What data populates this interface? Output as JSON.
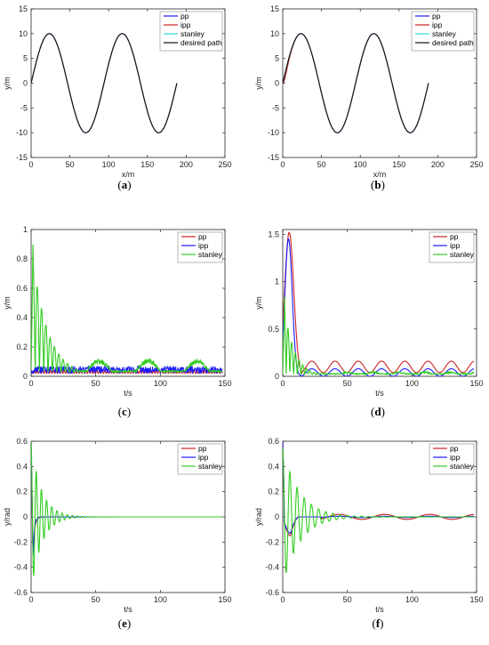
{
  "colors": {
    "pp": "#cc2222",
    "ipp": "#1a1aff",
    "stanley": "#33cc22",
    "stanley_path": "#33d6e0",
    "desired": "#111111",
    "axis": "#262626"
  },
  "panels": [
    {
      "label": "(a)",
      "chart_data": {
        "type": "line",
        "xlabel": "x/m",
        "ylabel": "y/m",
        "xlim": [
          0,
          250
        ],
        "ylim": [
          -15,
          15
        ],
        "xticks": [
          0,
          50,
          100,
          150,
          200,
          250
        ],
        "yticks": [
          -15,
          -10,
          -5,
          0,
          5,
          10,
          15
        ],
        "legend": [
          "pp",
          "ipp",
          "stanley",
          "desired path"
        ],
        "legend_position": "top-right",
        "series": [
          {
            "name": "pp",
            "color": "#1a1aff",
            "kind": "sine",
            "amp": 10,
            "period": 94,
            "x": [
              0,
              188
            ]
          },
          {
            "name": "ipp",
            "color": "#cc2222",
            "kind": "sine",
            "amp": 10,
            "period": 94,
            "x": [
              0,
              188
            ]
          },
          {
            "name": "stanley",
            "color": "#33d6e0",
            "kind": "sine",
            "amp": 10,
            "period": 94,
            "x": [
              0,
              188
            ]
          },
          {
            "name": "desired path",
            "color": "#111111",
            "kind": "sine",
            "amp": 10,
            "period": 94,
            "x": [
              0,
              188
            ]
          }
        ]
      }
    },
    {
      "label": "(b)",
      "chart_data": {
        "type": "line",
        "xlabel": "x/m",
        "ylabel": "y/m",
        "xlim": [
          0,
          250
        ],
        "ylim": [
          -15,
          15
        ],
        "xticks": [
          0,
          50,
          100,
          150,
          200,
          250
        ],
        "yticks": [
          -15,
          -10,
          -5,
          0,
          5,
          10,
          15
        ],
        "legend": [
          "pp",
          "ipp",
          "stanley",
          "desired path"
        ],
        "legend_position": "top-right",
        "series": [
          {
            "name": "pp",
            "color": "#1a1aff",
            "kind": "sine",
            "amp": 10,
            "period": 94,
            "x": [
              0,
              188
            ],
            "lag": 1.5
          },
          {
            "name": "ipp",
            "color": "#cc2222",
            "kind": "sine",
            "amp": 10,
            "period": 94,
            "x": [
              0,
              188
            ],
            "lag": 2
          },
          {
            "name": "stanley",
            "color": "#33d6e0",
            "kind": "sine",
            "amp": 10,
            "period": 94,
            "x": [
              0,
              188
            ]
          },
          {
            "name": "desired path",
            "color": "#111111",
            "kind": "sine",
            "amp": 10,
            "period": 94,
            "x": [
              0,
              188
            ]
          }
        ]
      }
    },
    {
      "label": "(c)",
      "chart_data": {
        "type": "line",
        "xlabel": "t/s",
        "ylabel": "y/m",
        "xlim": [
          0,
          150
        ],
        "ylim": [
          0,
          1
        ],
        "xticks": [
          0,
          50,
          100,
          150
        ],
        "yticks": [
          0,
          0.2,
          0.4,
          0.6,
          0.8,
          1
        ],
        "legend": [
          "pp",
          "ipp",
          "stanley"
        ],
        "legend_position": "top-right",
        "series": [
          {
            "name": "pp",
            "color": "#cc2222",
            "kind": "flat",
            "value": 0.03
          },
          {
            "name": "ipp",
            "color": "#1a1aff",
            "kind": "noise",
            "base": 0.02,
            "noise": 0.05
          },
          {
            "name": "stanley",
            "color": "#33cc22",
            "kind": "decay_osc",
            "peak": 0.91,
            "tpeak": 1.5,
            "freq": 0.3,
            "tau": 12,
            "floor": 0.04,
            "swell": 0.08,
            "swellPeriod": 38
          }
        ]
      }
    },
    {
      "label": "(d)",
      "chart_data": {
        "type": "line",
        "xlabel": "t/s",
        "ylabel": "y/m",
        "xlim": [
          0,
          150
        ],
        "ylim": [
          0,
          1.55
        ],
        "xticks": [
          0,
          50,
          100,
          150
        ],
        "yticks": [
          0,
          0.5,
          1,
          1.5
        ],
        "legend": [
          "pp",
          "ipp",
          "stanley"
        ],
        "legend_position": "top-right",
        "series": [
          {
            "name": "pp",
            "color": "#cc2222",
            "kind": "hump",
            "peak": 1.52,
            "tpeak": 5,
            "width": 5,
            "tail": 0.1,
            "wave": 0.06,
            "wavePeriod": 18
          },
          {
            "name": "ipp",
            "color": "#1a1aff",
            "kind": "hump",
            "peak": 1.45,
            "tpeak": 4.5,
            "width": 4,
            "tail": 0.04,
            "wave": 0.04,
            "wavePeriod": 18
          },
          {
            "name": "stanley",
            "color": "#33cc22",
            "kind": "decay_osc",
            "peak": 0.85,
            "tpeak": 1.5,
            "freq": 0.35,
            "tau": 8,
            "floor": 0.03,
            "swell": 0.02,
            "swellPeriod": 20
          }
        ]
      }
    },
    {
      "label": "(e)",
      "chart_data": {
        "type": "line",
        "xlabel": "t/s",
        "ylabel": "y/rad",
        "xlim": [
          0,
          150
        ],
        "ylim": [
          -0.6,
          0.6
        ],
        "xticks": [
          0,
          50,
          100,
          150
        ],
        "yticks": [
          -0.6,
          -0.4,
          -0.2,
          0,
          0.2,
          0.4,
          0.6
        ],
        "legend": [
          "pp",
          "ipp",
          "stanley"
        ],
        "legend_position": "top-right",
        "series": [
          {
            "name": "pp",
            "color": "#cc2222",
            "kind": "step_dip",
            "dip": -0.3,
            "tdip": 1.5,
            "tau": 1.2
          },
          {
            "name": "ipp",
            "color": "#1a1aff",
            "kind": "step_dip",
            "dip": -0.32,
            "tdip": 1.5,
            "tau": 1
          },
          {
            "name": "stanley",
            "color": "#33cc22",
            "kind": "ring",
            "amp": 0.6,
            "freq": 0.25,
            "tau": 8
          }
        ]
      }
    },
    {
      "label": "(f)",
      "chart_data": {
        "type": "line",
        "xlabel": "t/s",
        "ylabel": "y/rad",
        "xlim": [
          0,
          150
        ],
        "ylim": [
          -0.6,
          0.6
        ],
        "xticks": [
          0,
          50,
          100,
          150
        ],
        "yticks": [
          -0.6,
          -0.4,
          -0.2,
          0,
          0.2,
          0.4,
          0.6
        ],
        "legend": [
          "pp",
          "ipp",
          "stanley"
        ],
        "legend_position": "top-right",
        "series": [
          {
            "name": "pp",
            "color": "#cc2222",
            "kind": "slow_dip",
            "amp": 0.55,
            "tmin": 6,
            "min": -0.15,
            "tau": 4,
            "wave": 0.02,
            "wavePeriod": 35
          },
          {
            "name": "ipp",
            "color": "#1a1aff",
            "kind": "slow_dip",
            "amp": 0.5,
            "tmin": 6,
            "min": -0.13,
            "tau": 4,
            "wave": 0.005,
            "wavePeriod": 35
          },
          {
            "name": "stanley",
            "color": "#33cc22",
            "kind": "ring",
            "amp": 0.55,
            "freq": 0.18,
            "tau": 13
          }
        ]
      }
    }
  ]
}
